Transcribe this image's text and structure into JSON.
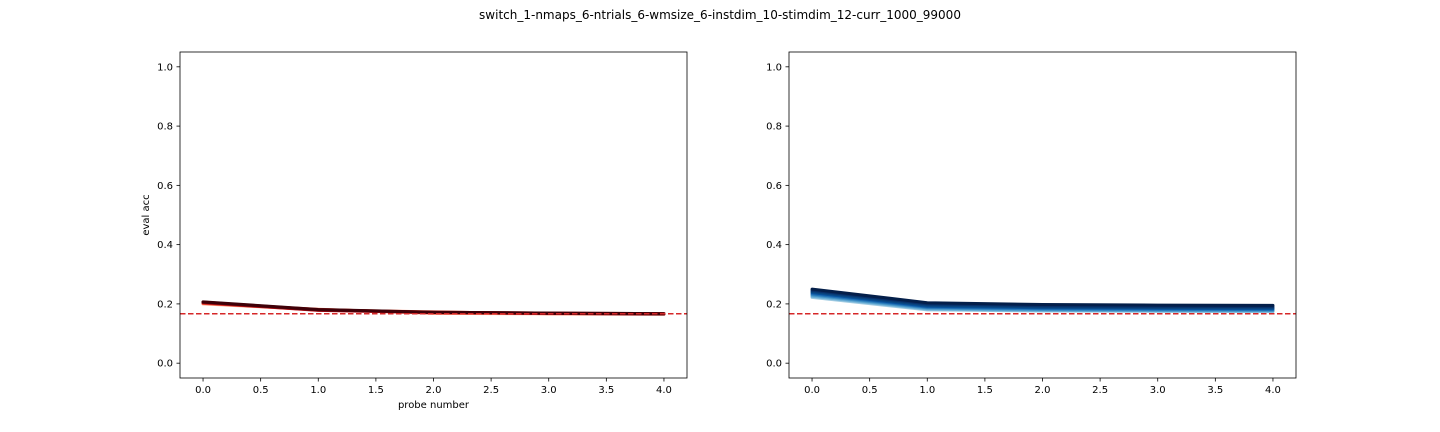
{
  "figure": {
    "title": "switch_1-nmaps_6-ntrials_6-wmsize_6-instdim_10-stimdim_12-curr_1000_99000"
  },
  "chart_data": [
    {
      "type": "line",
      "title": "",
      "xlabel": "probe number",
      "ylabel": "eval acc",
      "xlim": [
        -0.2,
        4.2
      ],
      "ylim": [
        -0.05,
        1.05
      ],
      "xticks": [
        "0.0",
        "0.5",
        "1.0",
        "1.5",
        "2.0",
        "2.5",
        "3.0",
        "3.5",
        "4.0"
      ],
      "yticks": [
        "0.0",
        "0.2",
        "0.4",
        "0.6",
        "0.8",
        "1.0"
      ],
      "grid": false,
      "x": [
        0,
        1,
        2,
        3,
        4
      ],
      "chance_line": {
        "y": 0.1667,
        "color": "#d62728",
        "style": "dashed"
      },
      "series": [
        {
          "values": [
            0.2,
            0.18,
            0.172,
            0.168,
            0.166
          ],
          "color": "#fcbba1"
        },
        {
          "values": [
            0.201,
            0.182,
            0.168,
            0.167,
            0.165
          ],
          "color": "#fc9272"
        },
        {
          "values": [
            0.202,
            0.18,
            0.173,
            0.167,
            0.167
          ],
          "color": "#fb6a4a"
        },
        {
          "values": [
            0.203,
            0.181,
            0.17,
            0.168,
            0.166
          ],
          "color": "#ef3b2c"
        },
        {
          "values": [
            0.204,
            0.178,
            0.171,
            0.168,
            0.167
          ],
          "color": "#cb181d"
        },
        {
          "values": [
            0.205,
            0.179,
            0.172,
            0.169,
            0.167
          ],
          "color": "#a50f15"
        },
        {
          "values": [
            0.206,
            0.18,
            0.171,
            0.168,
            0.166
          ],
          "color": "#67000d"
        },
        {
          "values": [
            0.207,
            0.181,
            0.172,
            0.169,
            0.167
          ],
          "color": "#3f0008"
        }
      ]
    },
    {
      "type": "line",
      "title": "",
      "xlabel": "",
      "ylabel": "",
      "xlim": [
        -0.2,
        4.2
      ],
      "ylim": [
        -0.05,
        1.05
      ],
      "xticks": [
        "0.0",
        "0.5",
        "1.0",
        "1.5",
        "2.0",
        "2.5",
        "3.0",
        "3.5",
        "4.0"
      ],
      "yticks": [
        "0.0",
        "0.2",
        "0.4",
        "0.6",
        "0.8",
        "1.0"
      ],
      "grid": false,
      "x": [
        0,
        1,
        2,
        3,
        4
      ],
      "chance_line": {
        "y": 0.1667,
        "color": "#d62728",
        "style": "dashed"
      },
      "series": [
        {
          "values": [
            0.222,
            0.18,
            0.176,
            0.175,
            0.174
          ],
          "color": "#9ecae1"
        },
        {
          "values": [
            0.226,
            0.183,
            0.178,
            0.177,
            0.176
          ],
          "color": "#6baed6"
        },
        {
          "values": [
            0.23,
            0.186,
            0.181,
            0.179,
            0.178
          ],
          "color": "#4292c6"
        },
        {
          "values": [
            0.234,
            0.189,
            0.184,
            0.182,
            0.181
          ],
          "color": "#2171b5"
        },
        {
          "values": [
            0.238,
            0.192,
            0.187,
            0.185,
            0.184
          ],
          "color": "#08519c"
        },
        {
          "values": [
            0.242,
            0.196,
            0.19,
            0.188,
            0.187
          ],
          "color": "#08457e"
        },
        {
          "values": [
            0.246,
            0.2,
            0.194,
            0.192,
            0.191
          ],
          "color": "#08306b"
        },
        {
          "values": [
            0.25,
            0.204,
            0.198,
            0.196,
            0.195
          ],
          "color": "#041f4a"
        }
      ]
    }
  ]
}
